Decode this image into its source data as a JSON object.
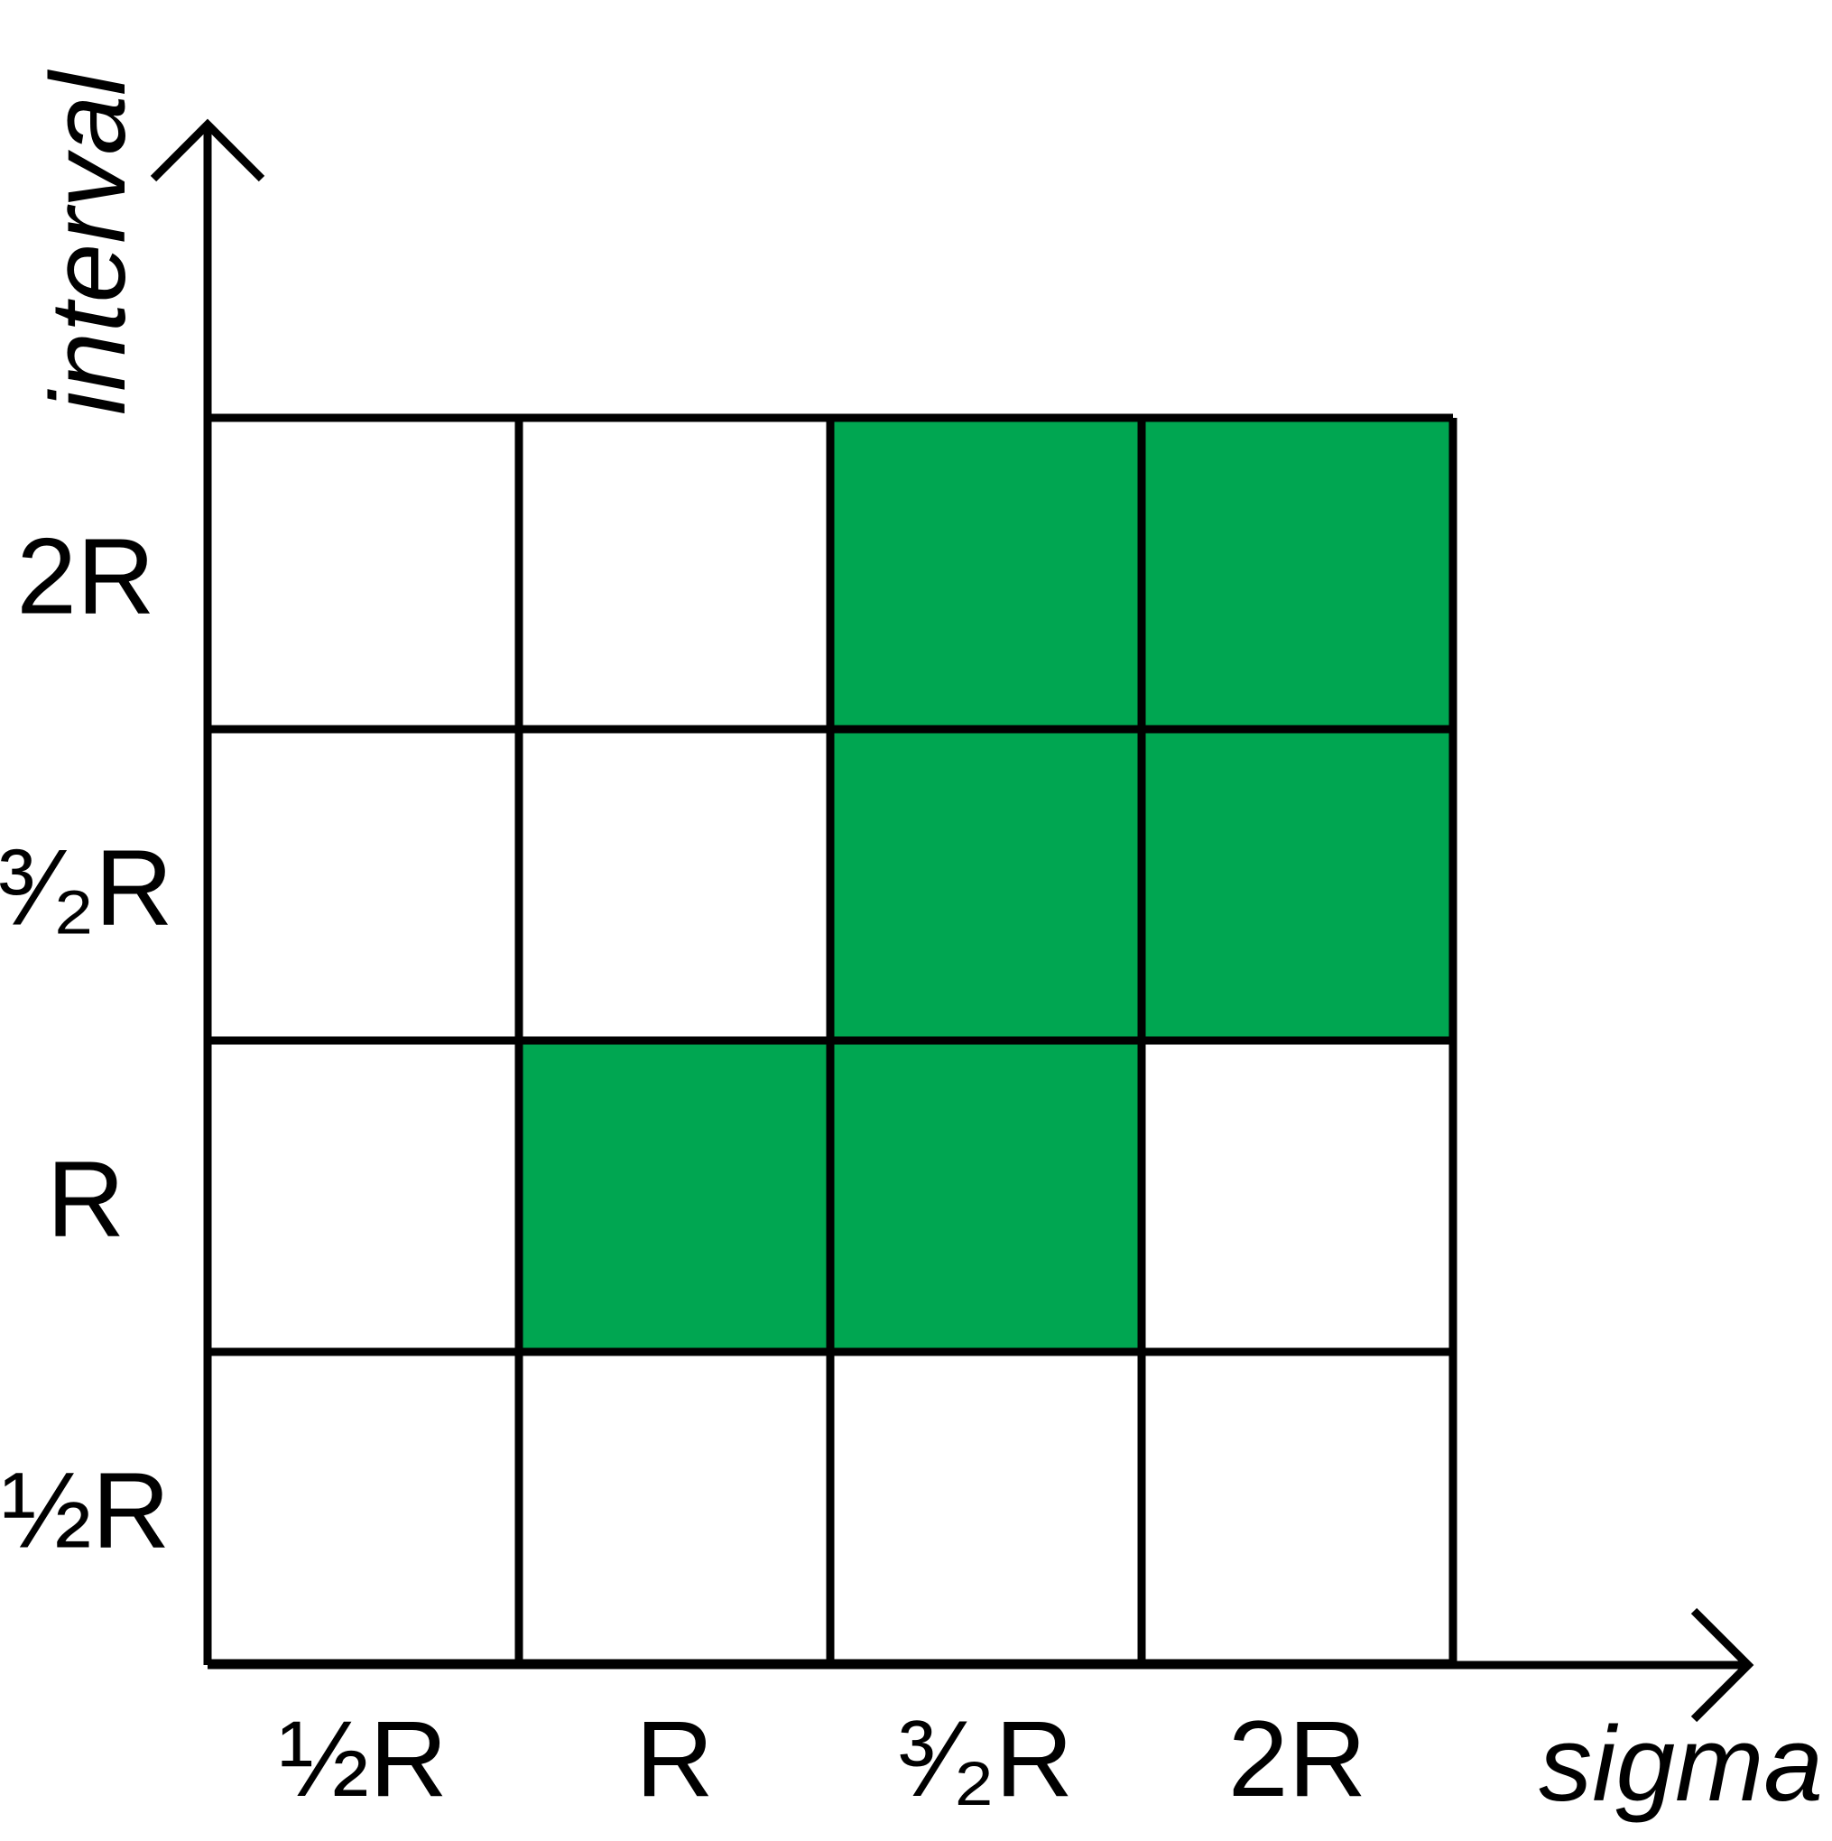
{
  "x_axis": {
    "title": "sigma",
    "ticks": [
      "½R",
      "R",
      "³⁄₂R",
      "2R"
    ]
  },
  "y_axis": {
    "title": "interval",
    "ticks": [
      "½R",
      "R",
      "³⁄₂R",
      "2R"
    ]
  },
  "colors": {
    "highlight": "#00a651",
    "line": "#000000",
    "background": "#ffffff"
  },
  "grid": {
    "columns": 4,
    "rows": 4,
    "highlighted_cells": [
      {
        "sigma": "R",
        "interval": "R"
      },
      {
        "sigma": "³⁄₂R",
        "interval": "R"
      },
      {
        "sigma": "³⁄₂R",
        "interval": "³⁄₂R"
      },
      {
        "sigma": "2R",
        "interval": "³⁄₂R"
      },
      {
        "sigma": "³⁄₂R",
        "interval": "2R"
      },
      {
        "sigma": "2R",
        "interval": "2R"
      }
    ]
  }
}
